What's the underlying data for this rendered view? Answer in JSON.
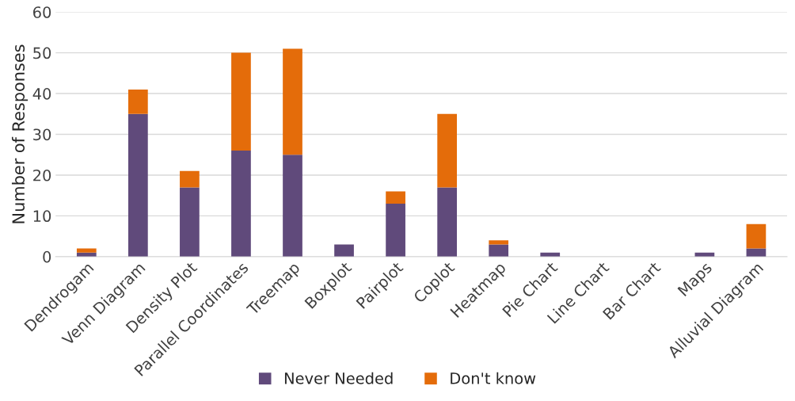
{
  "chart_data": {
    "type": "bar",
    "stacked": true,
    "ylabel": "Number of Responses",
    "categories": [
      "Dendrogam",
      "Venn Diagram",
      "Density Plot",
      "Parallel Coordinates",
      "Treemap",
      "Boxplot",
      "Pairplot",
      "Coplot",
      "Heatmap",
      "Pie Chart",
      "Line Chart",
      "Bar Chart",
      "Maps",
      "Alluvial Diagram"
    ],
    "series": [
      {
        "name": "Never Needed",
        "color": "#604a7b",
        "values": [
          1,
          35,
          17,
          26,
          25,
          3,
          13,
          17,
          3,
          1,
          0,
          0,
          1,
          2
        ]
      },
      {
        "name": "Don't know",
        "color": "#e46c0a",
        "values": [
          1,
          6,
          4,
          24,
          26,
          0,
          3,
          18,
          1,
          0,
          0,
          0,
          0,
          6
        ]
      }
    ],
    "ylim": [
      0,
      60
    ],
    "yticks": [
      0,
      10,
      20,
      30,
      40,
      50,
      60
    ],
    "grid": "y",
    "legend": "bottom"
  }
}
